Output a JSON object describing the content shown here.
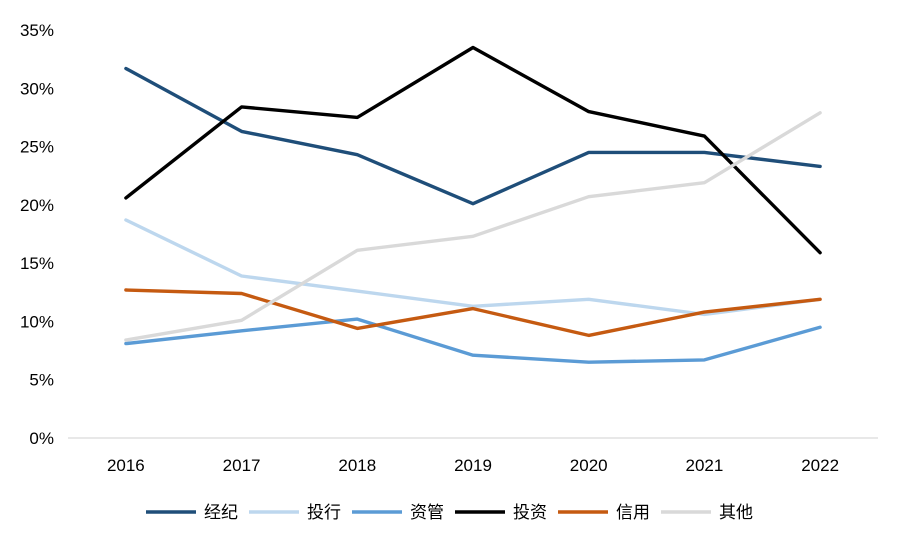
{
  "chart_data": {
    "type": "line",
    "title": "",
    "xlabel": "",
    "ylabel": "",
    "categories": [
      "2016",
      "2017",
      "2018",
      "2019",
      "2020",
      "2021",
      "2022"
    ],
    "ylim": [
      0,
      35
    ],
    "yticks": [
      "0%",
      "5%",
      "10%",
      "15%",
      "20%",
      "25%",
      "30%",
      "35%"
    ],
    "grid": false,
    "legend_position": "bottom",
    "series": [
      {
        "name": "经纪",
        "color": "#1f4e79",
        "values": [
          31.7,
          26.3,
          24.3,
          20.1,
          24.5,
          24.5,
          23.3
        ]
      },
      {
        "name": "投行",
        "color": "#bdd7ee",
        "values": [
          18.7,
          13.9,
          12.6,
          11.3,
          11.9,
          10.6,
          11.9
        ]
      },
      {
        "name": "资管",
        "color": "#5b9bd5",
        "values": [
          8.1,
          9.2,
          10.2,
          7.1,
          6.5,
          6.7,
          9.5
        ]
      },
      {
        "name": "投资",
        "color": "#000000",
        "values": [
          20.6,
          28.4,
          27.5,
          33.5,
          28.0,
          25.9,
          15.9
        ]
      },
      {
        "name": "信用",
        "color": "#c55a11",
        "values": [
          12.7,
          12.4,
          9.4,
          11.1,
          8.8,
          10.8,
          11.9
        ]
      },
      {
        "name": "其他",
        "color": "#d9d9d9",
        "values": [
          8.4,
          10.1,
          16.1,
          17.3,
          20.7,
          21.9,
          27.9
        ]
      }
    ]
  }
}
